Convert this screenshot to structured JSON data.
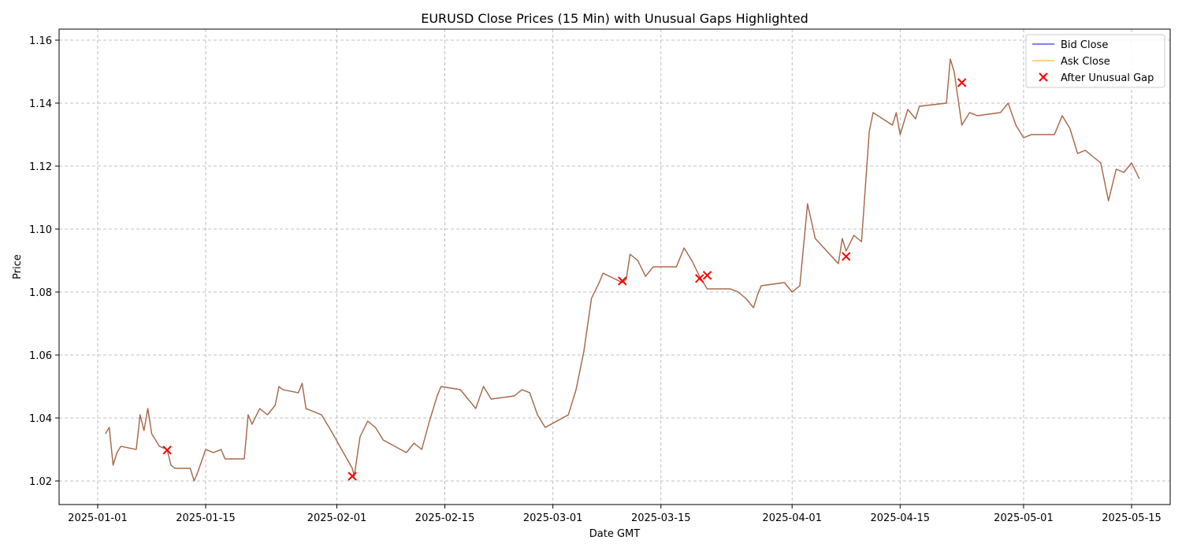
{
  "chart_data": {
    "type": "line",
    "title": "EURUSD Close Prices (15 Min) with Unusual Gaps Highlighted",
    "xlabel": "Date GMT",
    "ylabel": "Price",
    "xlim": [
      "2024-12-27",
      "2025-05-20"
    ],
    "ylim": [
      1.0125,
      1.1635
    ],
    "x_ticks": [
      "2025-01-01",
      "2025-01-15",
      "2025-02-01",
      "2025-02-15",
      "2025-03-01",
      "2025-03-15",
      "2025-04-01",
      "2025-04-15",
      "2025-05-01",
      "2025-05-15"
    ],
    "y_ticks": [
      1.02,
      1.04,
      1.06,
      1.08,
      1.1,
      1.12,
      1.14,
      1.16
    ],
    "y_tick_labels": [
      "1.02",
      "1.04",
      "1.06",
      "1.08",
      "1.10",
      "1.12",
      "1.14",
      "1.16"
    ],
    "grid": true,
    "legend_position": "top-right",
    "series": [
      {
        "name": "Bid Close",
        "color": "#0000ff",
        "points": [
          [
            "2025-01-02",
            1.035
          ],
          [
            "2025-01-02T12:00",
            1.037
          ],
          [
            "2025-01-03",
            1.025
          ],
          [
            "2025-01-03T12:00",
            1.029
          ],
          [
            "2025-01-04",
            1.031
          ],
          [
            "2025-01-06",
            1.03
          ],
          [
            "2025-01-06T12:00",
            1.041
          ],
          [
            "2025-01-07",
            1.036
          ],
          [
            "2025-01-07T12:00",
            1.043
          ],
          [
            "2025-01-08",
            1.035
          ],
          [
            "2025-01-09",
            1.031
          ],
          [
            "2025-01-10",
            1.03
          ],
          [
            "2025-01-10T12:00",
            1.025
          ],
          [
            "2025-01-11",
            1.024
          ],
          [
            "2025-01-13",
            1.024
          ],
          [
            "2025-01-13T12:00",
            1.02
          ],
          [
            "2025-01-14",
            1.023
          ],
          [
            "2025-01-15",
            1.03
          ],
          [
            "2025-01-16",
            1.029
          ],
          [
            "2025-01-17",
            1.03
          ],
          [
            "2025-01-17T12:00",
            1.027
          ],
          [
            "2025-01-20",
            1.027
          ],
          [
            "2025-01-20T12:00",
            1.041
          ],
          [
            "2025-01-21",
            1.038
          ],
          [
            "2025-01-22",
            1.043
          ],
          [
            "2025-01-23",
            1.041
          ],
          [
            "2025-01-24",
            1.044
          ],
          [
            "2025-01-24T12:00",
            1.05
          ],
          [
            "2025-01-25",
            1.049
          ],
          [
            "2025-01-27",
            1.048
          ],
          [
            "2025-01-27T12:00",
            1.051
          ],
          [
            "2025-01-28",
            1.043
          ],
          [
            "2025-01-29",
            1.042
          ],
          [
            "2025-01-30",
            1.041
          ],
          [
            "2025-01-31",
            1.037
          ],
          [
            "2025-02-03",
            1.024
          ],
          [
            "2025-02-03T06:00",
            1.0215
          ],
          [
            "2025-02-04",
            1.034
          ],
          [
            "2025-02-05",
            1.039
          ],
          [
            "2025-02-06",
            1.037
          ],
          [
            "2025-02-07",
            1.033
          ],
          [
            "2025-02-10",
            1.029
          ],
          [
            "2025-02-11",
            1.032
          ],
          [
            "2025-02-12",
            1.03
          ],
          [
            "2025-02-13",
            1.039
          ],
          [
            "2025-02-14",
            1.047
          ],
          [
            "2025-02-14T12:00",
            1.05
          ],
          [
            "2025-02-17",
            1.049
          ],
          [
            "2025-02-18",
            1.046
          ],
          [
            "2025-02-19",
            1.043
          ],
          [
            "2025-02-20",
            1.05
          ],
          [
            "2025-02-21",
            1.046
          ],
          [
            "2025-02-24",
            1.047
          ],
          [
            "2025-02-25",
            1.049
          ],
          [
            "2025-02-26",
            1.048
          ],
          [
            "2025-02-27",
            1.041
          ],
          [
            "2025-02-28",
            1.037
          ],
          [
            "2025-03-03",
            1.041
          ],
          [
            "2025-03-04",
            1.049
          ],
          [
            "2025-03-05",
            1.061
          ],
          [
            "2025-03-06",
            1.078
          ],
          [
            "2025-03-07",
            1.083
          ],
          [
            "2025-03-07T12:00",
            1.086
          ],
          [
            "2025-03-10",
            1.083
          ],
          [
            "2025-03-10T12:00",
            1.084
          ],
          [
            "2025-03-11",
            1.092
          ],
          [
            "2025-03-12",
            1.09
          ],
          [
            "2025-03-13",
            1.085
          ],
          [
            "2025-03-14",
            1.088
          ],
          [
            "2025-03-17",
            1.088
          ],
          [
            "2025-03-18",
            1.094
          ],
          [
            "2025-03-19",
            1.09
          ],
          [
            "2025-03-20",
            1.085
          ],
          [
            "2025-03-21",
            1.081
          ],
          [
            "2025-03-24",
            1.081
          ],
          [
            "2025-03-25",
            1.08
          ],
          [
            "2025-03-26",
            1.078
          ],
          [
            "2025-03-27",
            1.075
          ],
          [
            "2025-03-27T12:00",
            1.079
          ],
          [
            "2025-03-28",
            1.082
          ],
          [
            "2025-03-31",
            1.083
          ],
          [
            "2025-04-01",
            1.08
          ],
          [
            "2025-04-02",
            1.082
          ],
          [
            "2025-04-03",
            1.108
          ],
          [
            "2025-04-04",
            1.097
          ],
          [
            "2025-04-07",
            1.089
          ],
          [
            "2025-04-07T12:00",
            1.097
          ],
          [
            "2025-04-08",
            1.093
          ],
          [
            "2025-04-09",
            1.098
          ],
          [
            "2025-04-10",
            1.096
          ],
          [
            "2025-04-11",
            1.131
          ],
          [
            "2025-04-11T12:00",
            1.137
          ],
          [
            "2025-04-14",
            1.133
          ],
          [
            "2025-04-14T12:00",
            1.137
          ],
          [
            "2025-04-15",
            1.13
          ],
          [
            "2025-04-16",
            1.138
          ],
          [
            "2025-04-17",
            1.135
          ],
          [
            "2025-04-17T12:00",
            1.139
          ],
          [
            "2025-04-21",
            1.14
          ],
          [
            "2025-04-21T12:00",
            1.154
          ],
          [
            "2025-04-22",
            1.15
          ],
          [
            "2025-04-23",
            1.133
          ],
          [
            "2025-04-24",
            1.137
          ],
          [
            "2025-04-25",
            1.136
          ],
          [
            "2025-04-28",
            1.137
          ],
          [
            "2025-04-29",
            1.14
          ],
          [
            "2025-04-30",
            1.133
          ],
          [
            "2025-05-01",
            1.129
          ],
          [
            "2025-05-02",
            1.13
          ],
          [
            "2025-05-05",
            1.13
          ],
          [
            "2025-05-06",
            1.136
          ],
          [
            "2025-05-07",
            1.132
          ],
          [
            "2025-05-08",
            1.124
          ],
          [
            "2025-05-09",
            1.125
          ],
          [
            "2025-05-11",
            1.121
          ],
          [
            "2025-05-12",
            1.109
          ],
          [
            "2025-05-13",
            1.119
          ],
          [
            "2025-05-14",
            1.118
          ],
          [
            "2025-05-15",
            1.121
          ],
          [
            "2025-05-16",
            1.116
          ]
        ]
      },
      {
        "name": "Ask Close",
        "color": "#ffa500",
        "points": [
          [
            "2025-01-02",
            1.035
          ],
          [
            "2025-01-02T12:00",
            1.037
          ],
          [
            "2025-01-03",
            1.025
          ],
          [
            "2025-01-03T12:00",
            1.029
          ],
          [
            "2025-01-04",
            1.031
          ],
          [
            "2025-01-06",
            1.03
          ],
          [
            "2025-01-06T12:00",
            1.041
          ],
          [
            "2025-01-07",
            1.036
          ],
          [
            "2025-01-07T12:00",
            1.043
          ],
          [
            "2025-01-08",
            1.035
          ],
          [
            "2025-01-09",
            1.031
          ],
          [
            "2025-01-10",
            1.03
          ],
          [
            "2025-01-10T12:00",
            1.025
          ],
          [
            "2025-01-11",
            1.024
          ],
          [
            "2025-01-13",
            1.024
          ],
          [
            "2025-01-13T12:00",
            1.02
          ],
          [
            "2025-01-14",
            1.023
          ],
          [
            "2025-01-15",
            1.03
          ],
          [
            "2025-01-16",
            1.029
          ],
          [
            "2025-01-17",
            1.03
          ],
          [
            "2025-01-17T12:00",
            1.027
          ],
          [
            "2025-01-20",
            1.027
          ],
          [
            "2025-01-20T12:00",
            1.041
          ],
          [
            "2025-01-21",
            1.038
          ],
          [
            "2025-01-22",
            1.043
          ],
          [
            "2025-01-23",
            1.041
          ],
          [
            "2025-01-24",
            1.044
          ],
          [
            "2025-01-24T12:00",
            1.05
          ],
          [
            "2025-01-25",
            1.049
          ],
          [
            "2025-01-27",
            1.048
          ],
          [
            "2025-01-27T12:00",
            1.051
          ],
          [
            "2025-01-28",
            1.043
          ],
          [
            "2025-01-29",
            1.042
          ],
          [
            "2025-01-30",
            1.041
          ],
          [
            "2025-01-31",
            1.037
          ],
          [
            "2025-02-03",
            1.024
          ],
          [
            "2025-02-03T06:00",
            1.0215
          ],
          [
            "2025-02-04",
            1.034
          ],
          [
            "2025-02-05",
            1.039
          ],
          [
            "2025-02-06",
            1.037
          ],
          [
            "2025-02-07",
            1.033
          ],
          [
            "2025-02-10",
            1.029
          ],
          [
            "2025-02-11",
            1.032
          ],
          [
            "2025-02-12",
            1.03
          ],
          [
            "2025-02-13",
            1.039
          ],
          [
            "2025-02-14",
            1.047
          ],
          [
            "2025-02-14T12:00",
            1.05
          ],
          [
            "2025-02-17",
            1.049
          ],
          [
            "2025-02-18",
            1.046
          ],
          [
            "2025-02-19",
            1.043
          ],
          [
            "2025-02-20",
            1.05
          ],
          [
            "2025-02-21",
            1.046
          ],
          [
            "2025-02-24",
            1.047
          ],
          [
            "2025-02-25",
            1.049
          ],
          [
            "2025-02-26",
            1.048
          ],
          [
            "2025-02-27",
            1.041
          ],
          [
            "2025-02-28",
            1.037
          ],
          [
            "2025-03-03",
            1.041
          ],
          [
            "2025-03-04",
            1.049
          ],
          [
            "2025-03-05",
            1.061
          ],
          [
            "2025-03-06",
            1.078
          ],
          [
            "2025-03-07",
            1.083
          ],
          [
            "2025-03-07T12:00",
            1.086
          ],
          [
            "2025-03-10",
            1.083
          ],
          [
            "2025-03-10T12:00",
            1.084
          ],
          [
            "2025-03-11",
            1.092
          ],
          [
            "2025-03-12",
            1.09
          ],
          [
            "2025-03-13",
            1.085
          ],
          [
            "2025-03-14",
            1.088
          ],
          [
            "2025-03-17",
            1.088
          ],
          [
            "2025-03-18",
            1.094
          ],
          [
            "2025-03-19",
            1.09
          ],
          [
            "2025-03-20",
            1.085
          ],
          [
            "2025-03-21",
            1.081
          ],
          [
            "2025-03-24",
            1.081
          ],
          [
            "2025-03-25",
            1.08
          ],
          [
            "2025-03-26",
            1.078
          ],
          [
            "2025-03-27",
            1.075
          ],
          [
            "2025-03-27T12:00",
            1.079
          ],
          [
            "2025-03-28",
            1.082
          ],
          [
            "2025-03-31",
            1.083
          ],
          [
            "2025-04-01",
            1.08
          ],
          [
            "2025-04-02",
            1.082
          ],
          [
            "2025-04-03",
            1.108
          ],
          [
            "2025-04-04",
            1.097
          ],
          [
            "2025-04-07",
            1.089
          ],
          [
            "2025-04-07T12:00",
            1.097
          ],
          [
            "2025-04-08",
            1.093
          ],
          [
            "2025-04-09",
            1.098
          ],
          [
            "2025-04-10",
            1.096
          ],
          [
            "2025-04-11",
            1.131
          ],
          [
            "2025-04-11T12:00",
            1.137
          ],
          [
            "2025-04-14",
            1.133
          ],
          [
            "2025-04-14T12:00",
            1.137
          ],
          [
            "2025-04-15",
            1.13
          ],
          [
            "2025-04-16",
            1.138
          ],
          [
            "2025-04-17",
            1.135
          ],
          [
            "2025-04-17T12:00",
            1.139
          ],
          [
            "2025-04-21",
            1.14
          ],
          [
            "2025-04-21T12:00",
            1.154
          ],
          [
            "2025-04-22",
            1.15
          ],
          [
            "2025-04-23",
            1.133
          ],
          [
            "2025-04-24",
            1.137
          ],
          [
            "2025-04-25",
            1.136
          ],
          [
            "2025-04-28",
            1.137
          ],
          [
            "2025-04-29",
            1.14
          ],
          [
            "2025-04-30",
            1.133
          ],
          [
            "2025-05-01",
            1.129
          ],
          [
            "2025-05-02",
            1.13
          ],
          [
            "2025-05-05",
            1.13
          ],
          [
            "2025-05-06",
            1.136
          ],
          [
            "2025-05-07",
            1.132
          ],
          [
            "2025-05-08",
            1.124
          ],
          [
            "2025-05-09",
            1.125
          ],
          [
            "2025-05-11",
            1.121
          ],
          [
            "2025-05-12",
            1.109
          ],
          [
            "2025-05-13",
            1.119
          ],
          [
            "2025-05-14",
            1.118
          ],
          [
            "2025-05-15",
            1.121
          ],
          [
            "2025-05-16",
            1.116
          ]
        ]
      }
    ],
    "markers": {
      "name": "After Unusual Gap",
      "color": "#ff0000",
      "symbol": "x",
      "points": [
        [
          "2025-01-10",
          1.0298
        ],
        [
          "2025-02-03",
          1.0215
        ],
        [
          "2025-03-10",
          1.0835
        ],
        [
          "2025-03-20",
          1.0843
        ],
        [
          "2025-03-21",
          1.0853
        ],
        [
          "2025-04-08",
          1.0913
        ],
        [
          "2025-04-23",
          1.1465
        ]
      ]
    }
  }
}
